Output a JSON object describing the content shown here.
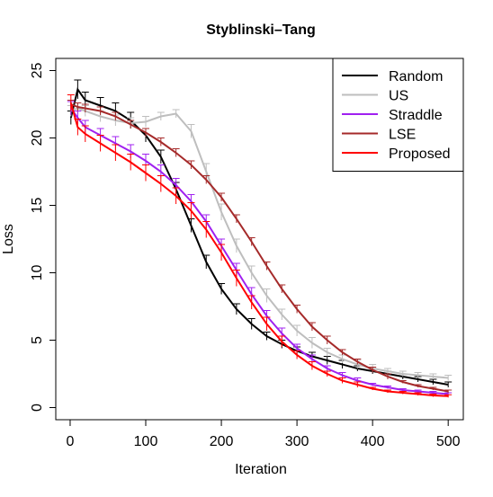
{
  "chart_data": {
    "type": "line",
    "title": "Styblinski–Tang",
    "x_label": "Iteration",
    "y_label": "Loss",
    "x": [
      1,
      10,
      20,
      40,
      60,
      80,
      100,
      120,
      140,
      160,
      180,
      200,
      220,
      240,
      260,
      280,
      300,
      320,
      340,
      360,
      380,
      400,
      420,
      440,
      460,
      480,
      500
    ],
    "xlim": [
      -19,
      520
    ],
    "ylim": [
      -0.9,
      25.9
    ],
    "xticks": [
      0,
      100,
      200,
      300,
      400,
      500
    ],
    "yticks": [
      0,
      5,
      10,
      15,
      20,
      25
    ],
    "legend": "top-right",
    "series": [
      {
        "name": "Random",
        "color": "#000000",
        "values": [
          21.5,
          23.6,
          22.8,
          22.4,
          22.0,
          21.3,
          20.2,
          18.6,
          16.2,
          13.5,
          10.8,
          8.8,
          7.3,
          6.2,
          5.3,
          4.7,
          4.2,
          3.8,
          3.5,
          3.2,
          2.9,
          2.7,
          2.5,
          2.3,
          2.1,
          1.9,
          1.7
        ],
        "errors": [
          0.5,
          0.7,
          0.6,
          0.6,
          0.6,
          0.6,
          0.5,
          0.5,
          0.5,
          0.5,
          0.5,
          0.4,
          0.4,
          0.4,
          0.3,
          0.3,
          0.3,
          0.3,
          0.3,
          0.3,
          0.2,
          0.2,
          0.2,
          0.2,
          0.2,
          0.2,
          0.2
        ]
      },
      {
        "name": "US",
        "color": "#bebebe",
        "values": [
          22.0,
          22.2,
          22.0,
          21.6,
          21.3,
          21.1,
          21.2,
          21.6,
          21.8,
          20.5,
          17.5,
          14.5,
          12.0,
          10.0,
          8.3,
          6.9,
          5.7,
          4.8,
          4.1,
          3.6,
          3.2,
          2.9,
          2.7,
          2.5,
          2.4,
          2.3,
          2.2
        ],
        "errors": [
          0.4,
          0.4,
          0.4,
          0.4,
          0.4,
          0.4,
          0.4,
          0.3,
          0.3,
          0.5,
          0.6,
          0.6,
          0.5,
          0.5,
          0.5,
          0.4,
          0.4,
          0.4,
          0.3,
          0.3,
          0.3,
          0.3,
          0.2,
          0.2,
          0.2,
          0.2,
          0.2
        ]
      },
      {
        "name": "Straddle",
        "color": "#a020f0",
        "values": [
          22.2,
          21.5,
          20.8,
          20.2,
          19.6,
          19.0,
          18.3,
          17.5,
          16.5,
          15.3,
          13.8,
          12.0,
          10.2,
          8.4,
          6.8,
          5.5,
          4.4,
          3.6,
          2.9,
          2.4,
          2.0,
          1.7,
          1.5,
          1.3,
          1.2,
          1.1,
          1.0
        ],
        "errors": [
          0.5,
          0.5,
          0.5,
          0.5,
          0.5,
          0.5,
          0.5,
          0.5,
          0.5,
          0.5,
          0.5,
          0.5,
          0.5,
          0.5,
          0.4,
          0.4,
          0.3,
          0.3,
          0.2,
          0.2,
          0.2,
          0.1,
          0.1,
          0.1,
          0.1,
          0.1,
          0.1
        ]
      },
      {
        "name": "LSE",
        "color": "#a52a2a",
        "values": [
          22.5,
          22.3,
          22.2,
          22.0,
          21.6,
          21.0,
          20.4,
          19.7,
          18.9,
          18.0,
          16.9,
          15.6,
          14.0,
          12.3,
          10.5,
          8.8,
          7.3,
          6.0,
          5.0,
          4.1,
          3.4,
          2.8,
          2.3,
          1.9,
          1.6,
          1.4,
          1.2
        ],
        "errors": [
          0.3,
          0.3,
          0.3,
          0.3,
          0.3,
          0.3,
          0.3,
          0.3,
          0.3,
          0.3,
          0.3,
          0.3,
          0.3,
          0.3,
          0.3,
          0.3,
          0.3,
          0.3,
          0.3,
          0.2,
          0.2,
          0.2,
          0.2,
          0.1,
          0.1,
          0.1,
          0.1
        ]
      },
      {
        "name": "Proposed",
        "color": "#ff0000",
        "values": [
          22.6,
          20.8,
          20.3,
          19.6,
          18.9,
          18.2,
          17.4,
          16.6,
          15.7,
          14.6,
          13.2,
          11.5,
          9.6,
          7.8,
          6.2,
          4.9,
          3.9,
          3.1,
          2.5,
          2.0,
          1.7,
          1.4,
          1.2,
          1.1,
          1.0,
          0.9,
          0.85
        ],
        "errors": [
          0.6,
          0.6,
          0.6,
          0.6,
          0.6,
          0.6,
          0.6,
          0.6,
          0.6,
          0.6,
          0.6,
          0.6,
          0.6,
          0.5,
          0.5,
          0.4,
          0.3,
          0.3,
          0.2,
          0.2,
          0.2,
          0.1,
          0.1,
          0.1,
          0.1,
          0.1,
          0.1
        ]
      }
    ]
  }
}
